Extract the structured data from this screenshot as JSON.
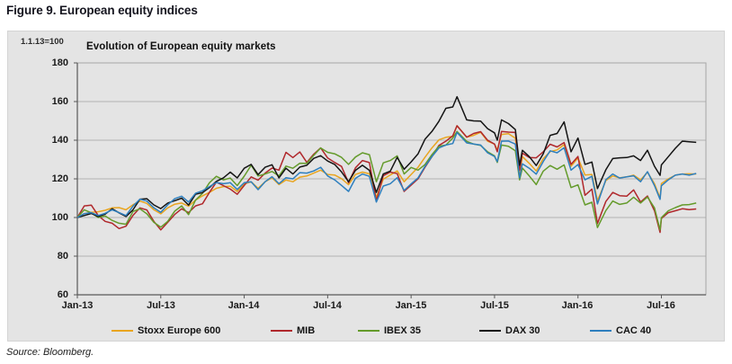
{
  "figure": {
    "title": "Figure 9. European equity indices",
    "source": "Source: Bloomberg."
  },
  "chart_data": {
    "type": "line",
    "title": "Evolution of European equity markets",
    "index_note": "1.1.13=100",
    "grid": true,
    "legend_position": "bottom",
    "x_axis": {
      "unit": "months since 2013-01-01",
      "tick_labels": [
        "Jan-13",
        "Jul-13",
        "Jan-14",
        "Jul-14",
        "Jan-15",
        "Jul-15",
        "Jan-16",
        "Jul-16"
      ],
      "tick_month_offsets": [
        0,
        6,
        12,
        18,
        24,
        30,
        36,
        42
      ],
      "range_months": [
        0,
        45.2
      ]
    },
    "y_axis": {
      "ticks": [
        60,
        80,
        100,
        120,
        140,
        160,
        180
      ],
      "range": [
        60,
        180
      ]
    },
    "x_months": [
      0,
      0.5,
      1,
      1.5,
      2,
      2.5,
      3,
      3.5,
      4,
      4.5,
      5,
      5.5,
      6,
      6.5,
      7,
      7.5,
      8,
      8.5,
      9,
      9.5,
      10,
      10.5,
      11,
      11.5,
      12,
      12.5,
      13,
      13.5,
      14,
      14.5,
      15,
      15.5,
      16,
      16.5,
      17,
      17.5,
      18,
      18.5,
      19,
      19.5,
      20,
      20.5,
      21,
      21.5,
      22,
      22.5,
      23,
      23.5,
      24,
      24.5,
      25,
      25.5,
      26,
      26.5,
      27,
      27.3,
      28,
      28.5,
      29,
      29.5,
      30,
      30.2,
      30.5,
      31,
      31.5,
      31.8,
      32,
      32.5,
      33,
      33.5,
      34,
      34.5,
      35,
      35.5,
      36,
      36.5,
      37,
      37.4,
      38,
      38.5,
      39,
      39.5,
      40,
      40.5,
      41,
      41.5,
      41.9,
      42,
      42.5,
      43,
      43.5,
      44,
      44.5
    ],
    "series": [
      {
        "name": "Stoxx Europe 600",
        "color": "#E9A51F",
        "values": [
          100,
          102,
          102.7,
          103,
          103.7,
          105,
          105.1,
          104,
          106.6,
          108.5,
          107.3,
          104,
          101.9,
          105,
          106.9,
          107.5,
          105.8,
          109,
          111.2,
          113,
          115.1,
          116,
          116.2,
          113.5,
          117.3,
          118.5,
          115.1,
          118.5,
          120.5,
          117,
          119.4,
          118.5,
          120.9,
          121.5,
          123,
          124.5,
          122.3,
          122,
          120.1,
          117,
          122.3,
          123.5,
          122.6,
          110.5,
          119.8,
          122,
          124.1,
          118.5,
          122.3,
          126,
          131.2,
          136,
          140.2,
          141.5,
          142,
          147.5,
          141.6,
          142.5,
          144.1,
          139.5,
          138,
          135,
          143,
          143.4,
          141,
          122.5,
          131.6,
          128,
          124.1,
          130.5,
          134.1,
          135,
          137.7,
          126.5,
          130.9,
          122,
          122.3,
          108.7,
          119.1,
          121.5,
          120.5,
          121,
          121.9,
          119.5,
          123.4,
          117.5,
          110.1,
          117.6,
          120,
          121.9,
          122.5,
          122.6,
          122.5
        ]
      },
      {
        "name": "MIB",
        "color": "#B0282C",
        "values": [
          100,
          106,
          106.4,
          101,
          98,
          97,
          94.3,
          95.5,
          101.1,
          105,
          103.9,
          98,
          93.6,
          97.5,
          101.6,
          104.5,
          102.5,
          106,
          107.1,
          113,
          118.3,
          116.5,
          114.7,
          112,
          116.6,
          121,
          119.3,
          123,
          125.6,
          124.5,
          133.7,
          131,
          133.9,
          128.5,
          132.8,
          136,
          130.8,
          128.5,
          126.4,
          118,
          125.7,
          129.5,
          128.4,
          108.5,
          121.6,
          123.5,
          122.7,
          113.5,
          116.8,
          120,
          126,
          131.5,
          137.3,
          139.5,
          142.3,
          147.5,
          141.6,
          143.5,
          144.4,
          140,
          138,
          134,
          144.5,
          144.2,
          144,
          124.5,
          133.3,
          131,
          130.9,
          134,
          137.9,
          136.5,
          138.8,
          127.5,
          131.6,
          111.5,
          114.7,
          96.9,
          108.3,
          113,
          111.3,
          111,
          114.3,
          108,
          111.1,
          103.5,
          92.3,
          99.5,
          102.5,
          103.5,
          104.5,
          104.1,
          104.4
        ]
      },
      {
        "name": "IBEX 35",
        "color": "#649B2B",
        "values": [
          100,
          104,
          102.4,
          100,
          100.8,
          98.5,
          97,
          96.5,
          103.1,
          104.5,
          101.9,
          97.5,
          95,
          98,
          103.3,
          106,
          101.5,
          109,
          112.5,
          118,
          121.3,
          119.5,
          120.4,
          116.5,
          121.4,
          127,
          121.5,
          122.5,
          123.8,
          121.5,
          126.6,
          125.5,
          128.1,
          128,
          132.2,
          136,
          133.7,
          133,
          131.1,
          127.5,
          131.3,
          133.5,
          132.5,
          118.5,
          128.3,
          129.5,
          131.9,
          122.5,
          125.9,
          124.5,
          127.4,
          132.5,
          136.9,
          137.5,
          141.1,
          144.5,
          139.4,
          138,
          137.3,
          134,
          131.9,
          128.5,
          137.5,
          136.9,
          134.5,
          119.5,
          125.6,
          121.5,
          117,
          124,
          126.9,
          125,
          127.2,
          115.5,
          116.9,
          106.5,
          107.9,
          94.8,
          103.6,
          108.5,
          106.8,
          107.5,
          110.5,
          107.5,
          110.6,
          105,
          93.6,
          99.9,
          103.5,
          105.1,
          106.5,
          106.7,
          107.5
        ]
      },
      {
        "name": "DAX 30",
        "color": "#141414",
        "values": [
          100,
          101,
          102.1,
          100.5,
          101.7,
          104.5,
          102.4,
          100.5,
          104,
          109.5,
          109.7,
          106.5,
          104.6,
          107.5,
          108.7,
          110,
          106.4,
          112,
          112.9,
          115.5,
          118.7,
          120.5,
          123.5,
          120.5,
          125.5,
          127.5,
          122.2,
          126,
          127.3,
          120.5,
          125.5,
          122.5,
          126.1,
          127,
          130.6,
          132,
          129.2,
          127.5,
          123.6,
          118.5,
          124.4,
          127,
          124.4,
          113,
          122.5,
          124,
          131.1,
          125,
          128.8,
          133,
          140.5,
          144.5,
          149.8,
          156.5,
          157.2,
          162.5,
          150.5,
          150,
          149.9,
          146,
          143.8,
          140,
          150.5,
          148.6,
          145.5,
          127,
          134.8,
          131.5,
          126.9,
          133,
          142.5,
          143.5,
          149.5,
          134,
          141.1,
          127.5,
          128.7,
          115,
          124.7,
          130.5,
          130.9,
          131,
          131.9,
          129.5,
          134.8,
          126.5,
          121.8,
          127.2,
          131.5,
          135.8,
          139.5,
          139.2,
          138.9
        ]
      },
      {
        "name": "CAC 40",
        "color": "#2E7FBE",
        "values": [
          100,
          102,
          102.5,
          101,
          102.2,
          104,
          102.5,
          101,
          105.9,
          109.5,
          108.5,
          105,
          102.7,
          106.5,
          109.7,
          111,
          108,
          112.5,
          113.8,
          116,
          118.1,
          117.5,
          118,
          114.5,
          118,
          118.5,
          114.4,
          118.5,
          121.1,
          117.5,
          120.6,
          120,
          123.2,
          123,
          124.1,
          126,
          121.5,
          119.5,
          116.6,
          113.5,
          120.3,
          122.5,
          121.3,
          108,
          116.3,
          117.5,
          120.6,
          114,
          117.4,
          120.5,
          126.4,
          131.5,
          136,
          137.5,
          138.3,
          144,
          138.6,
          138,
          137.5,
          133.5,
          131.6,
          129,
          139.5,
          139.6,
          138,
          120.5,
          127.8,
          125.5,
          122.4,
          129,
          134.5,
          133.5,
          136.1,
          124.5,
          127.4,
          119.5,
          121.3,
          107,
          119.6,
          122.5,
          120.4,
          121,
          121.6,
          118.5,
          123.7,
          116.5,
          109.4,
          116.4,
          119.5,
          121.9,
          122.5,
          121.9,
          122.8
        ]
      }
    ]
  },
  "style": {
    "panel_bg": "#e4e4e4",
    "plot_border": "#a6a6a6",
    "grid_color": "#b2b2b2",
    "axis_color": "#595959"
  }
}
